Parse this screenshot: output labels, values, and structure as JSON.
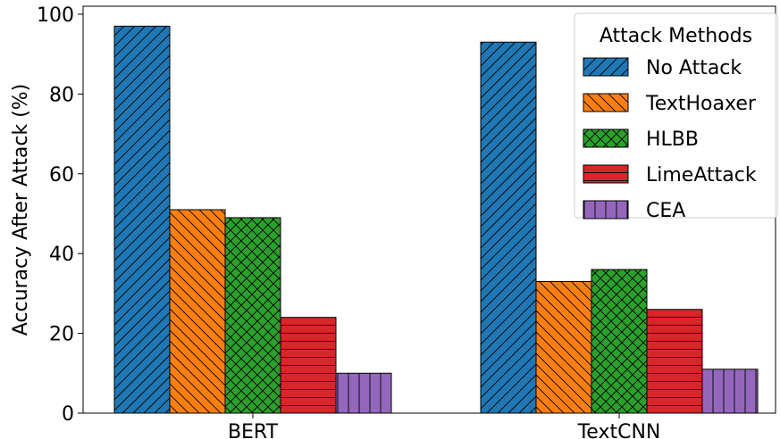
{
  "chart_data": {
    "type": "bar",
    "ylabel": "Accuracy After Attack (%)",
    "xlabel": "",
    "ylim": [
      0,
      102
    ],
    "yticks": [
      "0",
      "20",
      "40",
      "60",
      "80",
      "100"
    ],
    "ytick_values": [
      0,
      20,
      40,
      60,
      80,
      100
    ],
    "categories": [
      "BERT",
      "TextCNN"
    ],
    "series": [
      {
        "name": "No Attack",
        "values": [
          97,
          93
        ],
        "color": "#1f77b4",
        "hatch": "diagonal-up"
      },
      {
        "name": "TextHoaxer",
        "values": [
          51,
          33
        ],
        "color": "#ff7f0e",
        "hatch": "diagonal-down"
      },
      {
        "name": "HLBB",
        "values": [
          49,
          36
        ],
        "color": "#2ca02c",
        "hatch": "cross"
      },
      {
        "name": "LimeAttack",
        "values": [
          24,
          26
        ],
        "color": "#d62728",
        "hatch": "horizontal"
      },
      {
        "name": "CEA",
        "values": [
          10,
          11
        ],
        "color": "#9467bd",
        "hatch": "vertical"
      }
    ],
    "legend": {
      "title": "Attack Methods",
      "position": "top-right"
    },
    "grid": false
  }
}
